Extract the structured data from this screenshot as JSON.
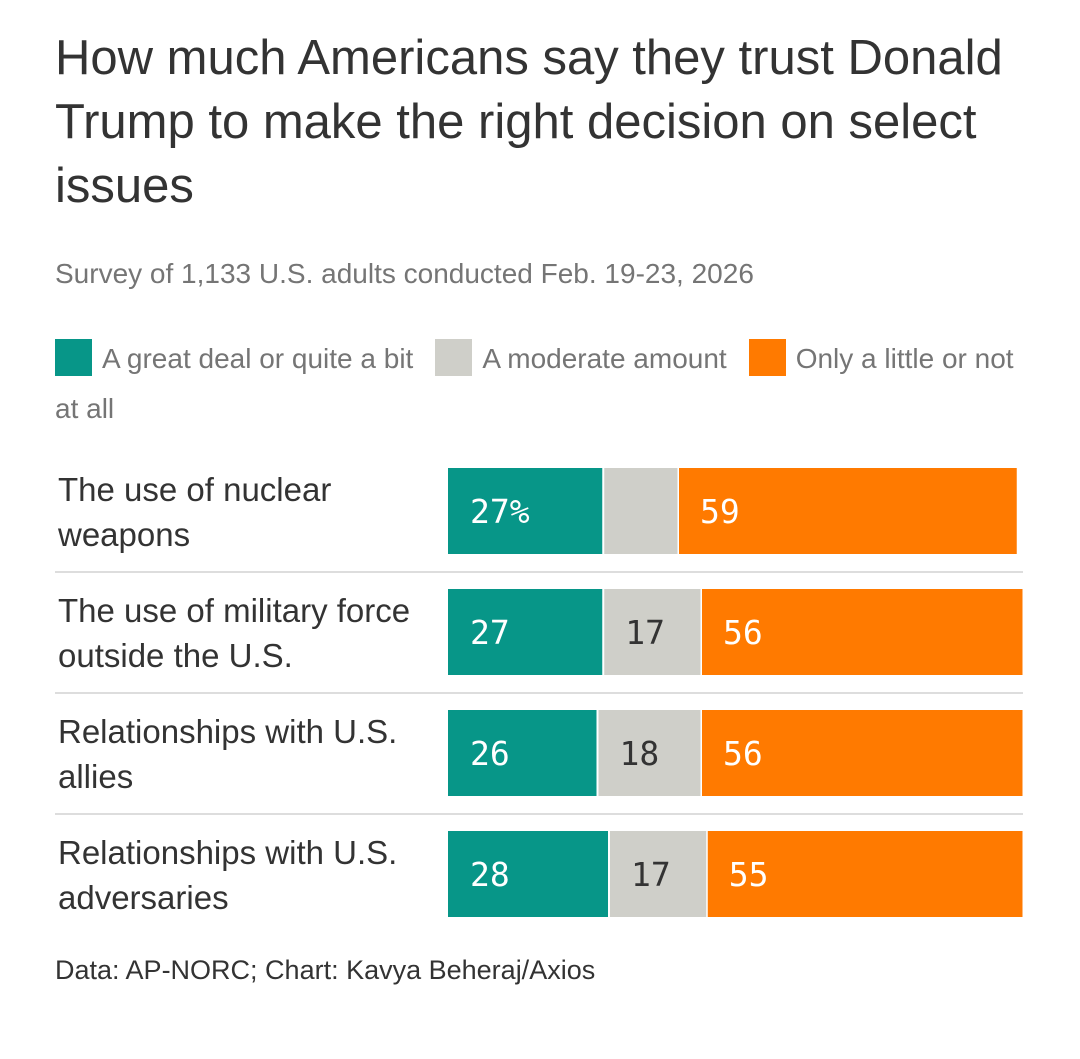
{
  "title": "How much Americans say they trust Donald Trump to make the right decision on select issues",
  "subtitle": "Survey of 1,133 U.S. adults conducted Feb. 19-23, 2026",
  "source": "Data: AP-NORC; Chart: Kavya Beheraj/Axios",
  "chart_data": {
    "type": "bar",
    "orientation": "horizontal",
    "stacked": true,
    "categories": [
      "The use of nuclear weapons",
      "The use of military force outside the U.S.",
      "Relationships with U.S. allies",
      "Relationships with U.S. adversaries"
    ],
    "series": [
      {
        "name": "A great deal or quite a bit",
        "color": "#079688",
        "values": [
          27,
          27,
          26,
          28
        ],
        "labels": [
          "27%",
          "27",
          "26",
          "28"
        ],
        "label_color": "#ffffff"
      },
      {
        "name": "A moderate amount",
        "color": "#cfcfc9",
        "values": [
          13,
          17,
          18,
          17
        ],
        "labels": [
          "",
          "17",
          "18",
          "17"
        ],
        "label_color": "#333333"
      },
      {
        "name": "Only a little or not at all",
        "color": "#ff7a00",
        "values": [
          59,
          56,
          56,
          55
        ],
        "labels": [
          "59",
          "56",
          "56",
          "55"
        ],
        "label_color": "#ffffff"
      }
    ],
    "xlim": [
      0,
      100
    ],
    "grid": false,
    "legend": "top"
  }
}
